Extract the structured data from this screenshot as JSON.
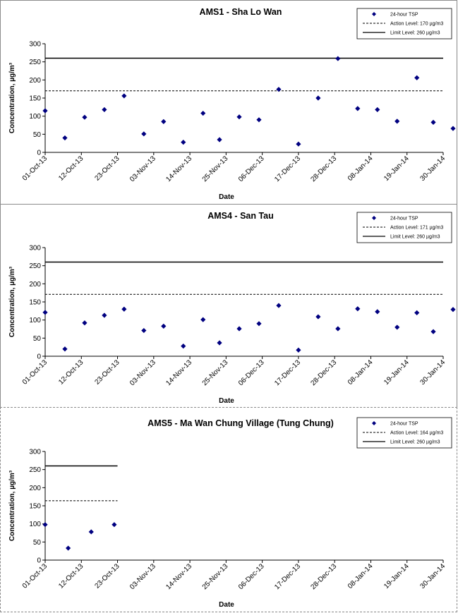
{
  "legend_labels": {
    "series": "24-hour TSP",
    "limit": "Limit Level: 260 µg/m3"
  },
  "chart_data": [
    {
      "type": "scatter",
      "title": "AMS1 - Sha Lo Wan",
      "xlabel": "Date",
      "ylabel": "Concentration, µg/m³",
      "ylim": [
        0,
        300
      ],
      "yticks": [
        0,
        50,
        100,
        150,
        200,
        250,
        300
      ],
      "xtick_labels": [
        "01-Oct-13",
        "12-Oct-13",
        "23-Oct-13",
        "03-Nov-13",
        "14-Nov-13",
        "25-Nov-13",
        "06-Dec-13",
        "17-Dec-13",
        "28-Dec-13",
        "08-Jan-14",
        "19-Jan-14",
        "30-Jan-14"
      ],
      "legend_placement": "top-right",
      "action_level": 170,
      "action_label": "Action Level: 170 µg/m3",
      "limit_level": 260,
      "series": [
        {
          "name": "24-hour TSP",
          "color": "#000080",
          "points": [
            [
              "01-Oct-13",
              115
            ],
            [
              "07-Oct-13",
              40
            ],
            [
              "13-Oct-13",
              97
            ],
            [
              "19-Oct-13",
              118
            ],
            [
              "25-Oct-13",
              156
            ],
            [
              "31-Oct-13",
              51
            ],
            [
              "06-Nov-13",
              85
            ],
            [
              "12-Nov-13",
              28
            ],
            [
              "18-Nov-13",
              108
            ],
            [
              "23-Nov-13",
              35
            ],
            [
              "29-Nov-13",
              98
            ],
            [
              "05-Dec-13",
              90
            ],
            [
              "11-Dec-13",
              174
            ],
            [
              "17-Dec-13",
              23
            ],
            [
              "23-Dec-13",
              150
            ],
            [
              "29-Dec-13",
              259
            ],
            [
              "04-Jan-14",
              121
            ],
            [
              "10-Jan-14",
              118
            ],
            [
              "16-Jan-14",
              86
            ],
            [
              "22-Jan-14",
              206
            ],
            [
              "27-Jan-14",
              83
            ],
            [
              "02-Feb-14",
              66
            ]
          ]
        }
      ]
    },
    {
      "type": "scatter",
      "title": "AMS4 - San Tau",
      "xlabel": "Date",
      "ylabel": "Concentration, µg/m³",
      "ylim": [
        0,
        300
      ],
      "yticks": [
        0,
        50,
        100,
        150,
        200,
        250,
        300
      ],
      "xtick_labels": [
        "01-Oct-13",
        "12-Oct-13",
        "23-Oct-13",
        "03-Nov-13",
        "14-Nov-13",
        "25-Nov-13",
        "06-Dec-13",
        "17-Dec-13",
        "28-Dec-13",
        "08-Jan-14",
        "19-Jan-14",
        "30-Jan-14"
      ],
      "legend_placement": "top-right",
      "action_level": 171,
      "action_label": "Action Level: 171 µg/m3",
      "limit_level": 260,
      "series": [
        {
          "name": "24-hour TSP",
          "color": "#000080",
          "points": [
            [
              "01-Oct-13",
              121
            ],
            [
              "07-Oct-13",
              20
            ],
            [
              "13-Oct-13",
              92
            ],
            [
              "19-Oct-13",
              113
            ],
            [
              "25-Oct-13",
              130
            ],
            [
              "31-Oct-13",
              71
            ],
            [
              "06-Nov-13",
              83
            ],
            [
              "12-Nov-13",
              28
            ],
            [
              "18-Nov-13",
              101
            ],
            [
              "23-Nov-13",
              37
            ],
            [
              "29-Nov-13",
              76
            ],
            [
              "05-Dec-13",
              90
            ],
            [
              "11-Dec-13",
              140
            ],
            [
              "17-Dec-13",
              17
            ],
            [
              "23-Dec-13",
              109
            ],
            [
              "29-Dec-13",
              76
            ],
            [
              "04-Jan-14",
              131
            ],
            [
              "10-Jan-14",
              123
            ],
            [
              "16-Jan-14",
              80
            ],
            [
              "22-Jan-14",
              120
            ],
            [
              "27-Jan-14",
              68
            ],
            [
              "02-Feb-14",
              129
            ]
          ]
        }
      ]
    },
    {
      "type": "scatter",
      "title": "AMS5 - Ma Wan Chung Village (Tung Chung)",
      "xlabel": "Date",
      "ylabel": "Concentration, µg/m³",
      "ylim": [
        0,
        300
      ],
      "yticks": [
        0,
        50,
        100,
        150,
        200,
        250,
        300
      ],
      "xtick_labels": [
        "01-Oct-13",
        "12-Oct-13",
        "23-Oct-13",
        "03-Nov-13",
        "14-Nov-13",
        "25-Nov-13",
        "06-Dec-13",
        "17-Dec-13",
        "28-Dec-13",
        "08-Jan-14",
        "19-Jan-14",
        "30-Jan-14"
      ],
      "legend_placement": "top-right",
      "action_level": 164,
      "action_label": "Action Level: 164 µg/m3",
      "limit_level": 260,
      "level_lines_end": "23-Oct-13",
      "series": [
        {
          "name": "24-hour TSP",
          "color": "#000080",
          "points": [
            [
              "01-Oct-13",
              98
            ],
            [
              "08-Oct-13",
              33
            ],
            [
              "15-Oct-13",
              78
            ],
            [
              "22-Oct-13",
              98
            ]
          ]
        }
      ]
    }
  ]
}
